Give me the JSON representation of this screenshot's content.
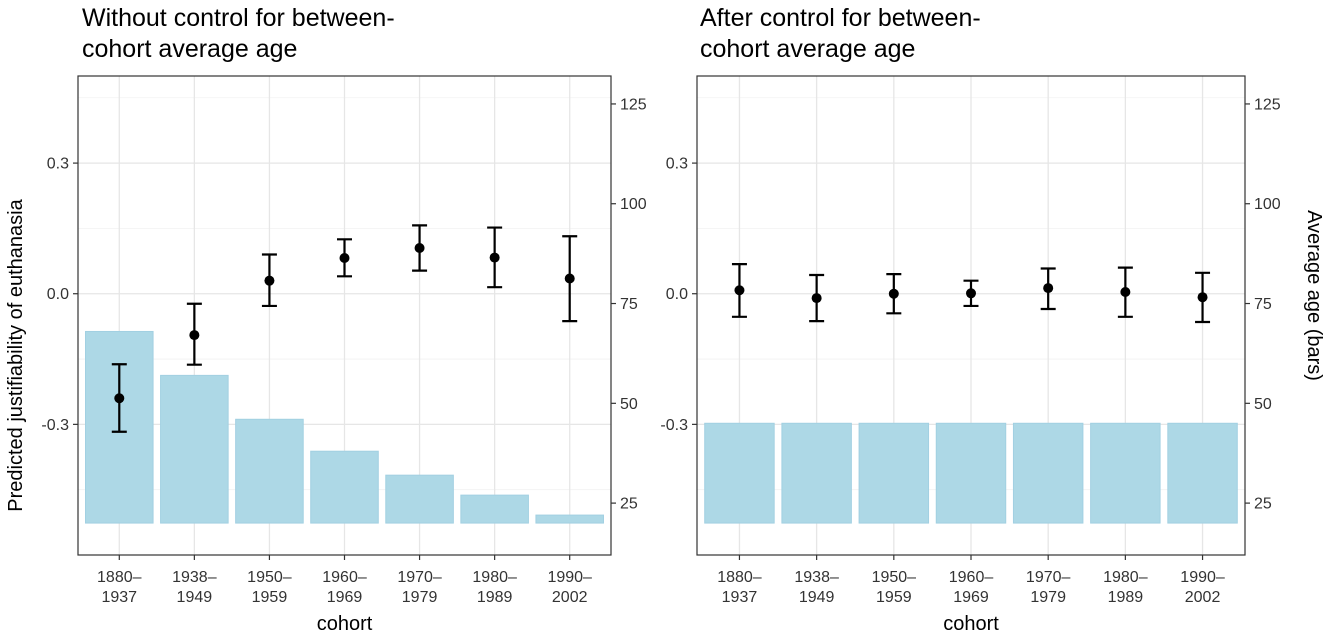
{
  "chart_data": [
    {
      "type": "bar",
      "title_lines": [
        "Without control for between-",
        "cohort average age"
      ],
      "xlabel": "cohort",
      "ylabel": "Predicted justifiability of euthanasia",
      "y2label": "",
      "ylim": [
        -0.6,
        0.5
      ],
      "y_ticks": [
        -0.3,
        0.0,
        0.3
      ],
      "y_tick_labels": [
        "-0.3",
        "0.0",
        "0.3"
      ],
      "y2lim": [
        12,
        132
      ],
      "y2_ticks": [
        25,
        50,
        75,
        100,
        125
      ],
      "categories": [
        [
          "1880–",
          "1937"
        ],
        [
          "1938–",
          "1949"
        ],
        [
          "1950–",
          "1959"
        ],
        [
          "1960–",
          "1969"
        ],
        [
          "1970–",
          "1979"
        ],
        [
          "1980–",
          "1989"
        ],
        [
          "1990–",
          "2002"
        ]
      ],
      "bars_average_age": [
        68,
        57,
        46,
        38,
        32,
        27,
        22
      ],
      "bar_base_age": 20,
      "point_estimates": [
        -0.24,
        -0.095,
        0.03,
        0.082,
        0.105,
        0.083,
        0.035
      ],
      "ci_lower": [
        -0.317,
        -0.163,
        -0.028,
        0.04,
        0.053,
        0.015,
        -0.063
      ],
      "ci_upper": [
        -0.162,
        -0.023,
        0.09,
        0.125,
        0.157,
        0.152,
        0.132
      ]
    },
    {
      "type": "bar",
      "title_lines": [
        "After control for between-",
        "cohort average age"
      ],
      "xlabel": "cohort",
      "ylabel": "",
      "y2label": "Average age (bars)",
      "ylim": [
        -0.6,
        0.5
      ],
      "y_ticks": [
        -0.3,
        0.0,
        0.3
      ],
      "y_tick_labels": [
        "-0.3",
        "0.0",
        "0.3"
      ],
      "y2lim": [
        12,
        132
      ],
      "y2_ticks": [
        25,
        50,
        75,
        100,
        125
      ],
      "categories": [
        [
          "1880–",
          "1937"
        ],
        [
          "1938–",
          "1949"
        ],
        [
          "1950–",
          "1959"
        ],
        [
          "1960–",
          "1969"
        ],
        [
          "1970–",
          "1979"
        ],
        [
          "1980–",
          "1989"
        ],
        [
          "1990–",
          "2002"
        ]
      ],
      "bars_average_age": [
        45,
        45,
        45,
        45,
        45,
        45,
        45
      ],
      "bar_base_age": 20,
      "point_estimates": [
        0.008,
        -0.01,
        0.0,
        0.001,
        0.013,
        0.004,
        -0.008
      ],
      "ci_lower": [
        -0.053,
        -0.063,
        -0.045,
        -0.028,
        -0.035,
        -0.053,
        -0.065
      ],
      "ci_upper": [
        0.068,
        0.043,
        0.045,
        0.03,
        0.058,
        0.06,
        0.048
      ]
    }
  ]
}
